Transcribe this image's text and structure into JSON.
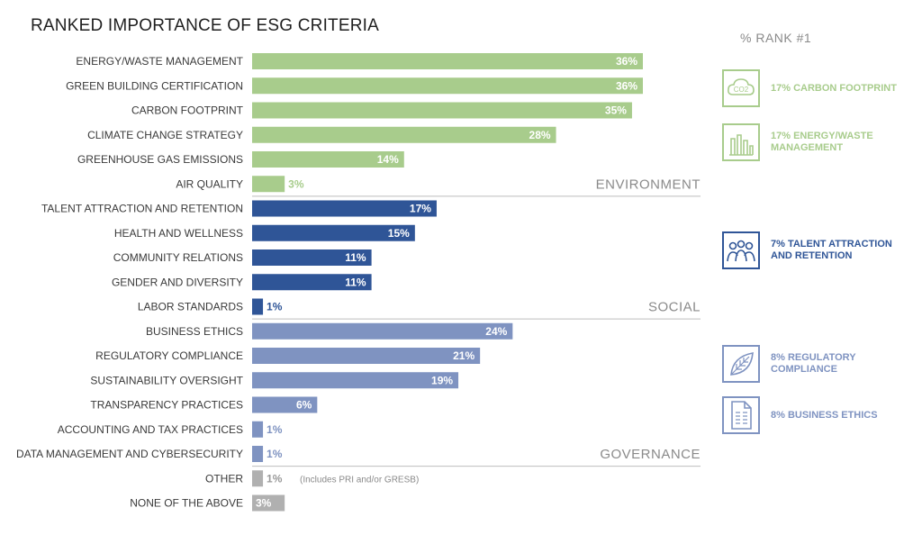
{
  "chart_data": {
    "type": "bar",
    "orientation": "horizontal",
    "title": "RANKED IMPORTANCE OF ESG CRITERIA",
    "xlim": [
      0,
      36
    ],
    "categories": [
      "ENERGY/WASTE MANAGEMENT",
      "GREEN BUILDING CERTIFICATION",
      "CARBON FOOTPRINT",
      "CLIMATE CHANGE STRATEGY",
      "GREENHOUSE GAS EMISSIONS",
      "AIR QUALITY",
      "TALENT ATTRACTION AND RETENTION",
      "HEALTH AND WELLNESS",
      "COMMUNITY RELATIONS",
      "GENDER AND DIVERSITY",
      "LABOR STANDARDS",
      "BUSINESS ETHICS",
      "REGULATORY COMPLIANCE",
      "SUSTAINABILITY OVERSIGHT",
      "TRANSPARENCY PRACTICES",
      "ACCOUNTING AND TAX PRACTICES",
      "DATA MANAGEMENT AND CYBERSECURITY",
      "OTHER",
      "NONE OF THE ABOVE"
    ],
    "values": [
      36,
      36,
      35,
      28,
      14,
      3,
      17,
      15,
      11,
      11,
      1,
      24,
      21,
      19,
      6,
      1,
      1,
      1,
      3
    ],
    "value_labels": [
      "36%",
      "36%",
      "35%",
      "28%",
      "14%",
      "3%",
      "17%",
      "15%",
      "11%",
      "11%",
      "1%",
      "24%",
      "21%",
      "19%",
      "6%",
      "1%",
      "1%",
      "1%",
      "3%"
    ],
    "groups": [
      "ENVIRONMENT",
      "ENVIRONMENT",
      "ENVIRONMENT",
      "ENVIRONMENT",
      "ENVIRONMENT",
      "ENVIRONMENT",
      "SOCIAL",
      "SOCIAL",
      "SOCIAL",
      "SOCIAL",
      "SOCIAL",
      "GOVERNANCE",
      "GOVERNANCE",
      "GOVERNANCE",
      "GOVERNANCE",
      "GOVERNANCE",
      "GOVERNANCE",
      "OTHER",
      "OTHER"
    ],
    "group_labels": [
      {
        "name": "ENVIRONMENT",
        "after_index": 5
      },
      {
        "name": "SOCIAL",
        "after_index": 10
      },
      {
        "name": "GOVERNANCE",
        "after_index": 16
      }
    ],
    "colors": {
      "ENVIRONMENT": "#a8cc8c",
      "SOCIAL": "#2f5597",
      "GOVERNANCE": "#7f93c1",
      "OTHER": "#b0b0b0"
    },
    "annotations": [
      {
        "index": 17,
        "text": "(Includes PRI and/or GRESB)"
      }
    ]
  },
  "rank_panel": {
    "title": "% RANK #1",
    "items": [
      {
        "label": "17% CARBON FOOTPRINT",
        "icon": "co2-icon",
        "color": "#a8cc8c"
      },
      {
        "label": "17% ENERGY/WASTE MANAGEMENT",
        "icon": "factory-icon",
        "color": "#a8cc8c"
      },
      {
        "label": "7% TALENT ATTRACTION AND RETENTION",
        "icon": "people-icon",
        "color": "#2f5597"
      },
      {
        "label": "8% REGULATORY COMPLIANCE",
        "icon": "leaf-icon",
        "color": "#7f93c1"
      },
      {
        "label": "8% BUSINESS ETHICS",
        "icon": "document-icon",
        "color": "#7f93c1"
      }
    ]
  }
}
